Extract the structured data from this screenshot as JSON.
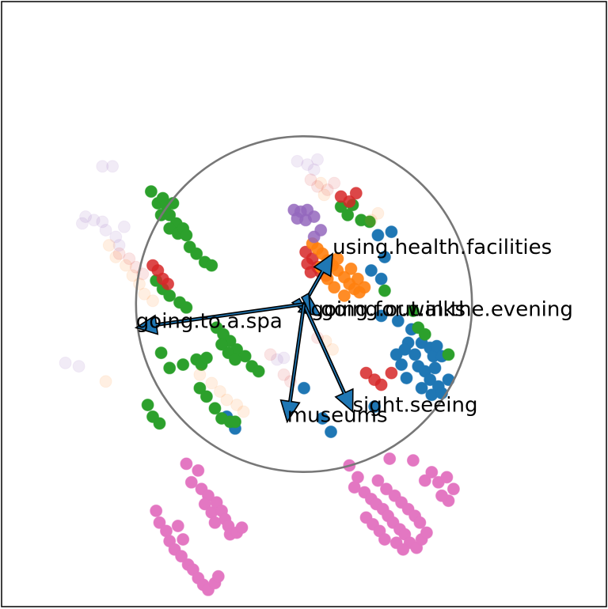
{
  "chart_data": {
    "type": "scatter",
    "title": "",
    "xlabel": "",
    "ylabel": "",
    "xlim": [
      -1.8,
      1.8
    ],
    "ylim": [
      -1.8,
      1.8
    ],
    "grid": false,
    "ticks_visible": false,
    "unit_circle": {
      "radius": 1.0,
      "color": "#777777"
    },
    "arrows": [
      {
        "label": "using.health.facilities",
        "x": 0.17,
        "y": 0.3
      },
      {
        "label": "going.out.in.the.evening",
        "x": 0.1,
        "y": -0.07
      },
      {
        "label": "going.for.walks",
        "x": 0.04,
        "y": -0.07
      },
      {
        "label": "going.to.a.spa",
        "x": -1.0,
        "y": -0.14
      },
      {
        "label": "sight.seeing",
        "x": 0.29,
        "y": -0.64
      },
      {
        "label": "museums",
        "x": -0.1,
        "y": -0.7
      }
    ],
    "series": [
      {
        "color": "#1f77b4",
        "opacity": 1.0,
        "points": [
          [
            0.52,
            0.43
          ],
          [
            0.44,
            0.41
          ],
          [
            0.48,
            0.28
          ],
          [
            0.4,
            0.2
          ],
          [
            0.46,
            0.15
          ],
          [
            0.46,
            -0.07
          ],
          [
            0.56,
            -0.1
          ],
          [
            0.64,
            -0.15
          ],
          [
            0.62,
            -0.23
          ],
          [
            0.7,
            -0.23
          ],
          [
            0.75,
            -0.26
          ],
          [
            0.77,
            -0.31
          ],
          [
            0.79,
            -0.25
          ],
          [
            0.82,
            -0.31
          ],
          [
            0.6,
            -0.27
          ],
          [
            0.66,
            -0.3
          ],
          [
            0.68,
            -0.37
          ],
          [
            0.72,
            -0.4
          ],
          [
            0.75,
            -0.45
          ],
          [
            0.78,
            -0.38
          ],
          [
            0.8,
            -0.49
          ],
          [
            0.7,
            -0.5
          ],
          [
            0.76,
            -0.54
          ],
          [
            0.82,
            -0.53
          ],
          [
            0.86,
            -0.45
          ],
          [
            0.61,
            -0.44
          ],
          [
            0.58,
            -0.36
          ],
          [
            0.55,
            -0.3
          ],
          [
            0.0,
            -0.5
          ],
          [
            -0.46,
            -0.67
          ],
          [
            -0.41,
            -0.74
          ],
          [
            0.11,
            -0.68
          ],
          [
            0.16,
            -0.76
          ],
          [
            0.42,
            -0.61
          ]
        ]
      },
      {
        "color": "#2ca02c",
        "opacity": 1.0,
        "points": [
          [
            -0.91,
            0.67
          ],
          [
            -0.87,
            0.6
          ],
          [
            -0.84,
            0.63
          ],
          [
            -0.82,
            0.59
          ],
          [
            -0.78,
            0.6
          ],
          [
            -0.85,
            0.53
          ],
          [
            -0.8,
            0.53
          ],
          [
            -0.76,
            0.48
          ],
          [
            -0.8,
            0.45
          ],
          [
            -0.75,
            0.42
          ],
          [
            -0.72,
            0.45
          ],
          [
            -0.7,
            0.41
          ],
          [
            -0.68,
            0.34
          ],
          [
            -0.64,
            0.3
          ],
          [
            -0.59,
            0.25
          ],
          [
            -0.55,
            0.23
          ],
          [
            -0.88,
            0.14
          ],
          [
            -0.84,
            0.09
          ],
          [
            -0.8,
            0.05
          ],
          [
            -0.74,
            0.01
          ],
          [
            -0.7,
            -0.02
          ],
          [
            -0.52,
            -0.14
          ],
          [
            -0.48,
            -0.18
          ],
          [
            -0.44,
            -0.22
          ],
          [
            -0.4,
            -0.27
          ],
          [
            -0.35,
            -0.31
          ],
          [
            -0.31,
            -0.37
          ],
          [
            -0.27,
            -0.4
          ],
          [
            -0.49,
            -0.24
          ],
          [
            -0.45,
            -0.29
          ],
          [
            -0.41,
            -0.33
          ],
          [
            -0.85,
            -0.29
          ],
          [
            -0.8,
            -0.38
          ],
          [
            -0.72,
            -0.36
          ],
          [
            -0.64,
            -0.33
          ],
          [
            -0.61,
            -0.36
          ],
          [
            -0.58,
            -0.32
          ],
          [
            -0.62,
            -0.5
          ],
          [
            -0.58,
            -0.55
          ],
          [
            -0.53,
            -0.62
          ],
          [
            -0.49,
            -0.68
          ],
          [
            -0.44,
            -0.7
          ],
          [
            -0.41,
            -0.7
          ],
          [
            -0.93,
            -0.6
          ],
          [
            -0.9,
            -0.67
          ],
          [
            -0.86,
            -0.71
          ],
          [
            0.22,
            0.58
          ],
          [
            0.26,
            0.53
          ],
          [
            0.29,
            0.59
          ],
          [
            0.34,
            0.5
          ],
          [
            0.39,
            0.49
          ],
          [
            0.65,
            -0.04
          ],
          [
            0.68,
            -0.14
          ],
          [
            0.72,
            -0.18
          ],
          [
            0.48,
            0.08
          ],
          [
            0.86,
            -0.3
          ]
        ]
      },
      {
        "color": "#d62728",
        "opacity": 0.85,
        "points": [
          [
            0.01,
            0.31
          ],
          [
            0.05,
            0.27
          ],
          [
            0.08,
            0.22
          ],
          [
            0.1,
            0.19
          ],
          [
            0.13,
            0.17
          ],
          [
            0.04,
            0.19
          ],
          [
            0.02,
            0.24
          ],
          [
            0.15,
            0.25
          ],
          [
            0.22,
            0.64
          ],
          [
            0.27,
            0.61
          ],
          [
            0.31,
            0.66
          ],
          [
            0.37,
            -0.41
          ],
          [
            0.42,
            -0.45
          ],
          [
            0.46,
            -0.48
          ],
          [
            0.52,
            -0.41
          ],
          [
            -0.9,
            0.23
          ],
          [
            -0.87,
            0.2
          ],
          [
            -0.84,
            0.15
          ],
          [
            -0.81,
            0.12
          ]
        ]
      },
      {
        "color": "#ff7f0e",
        "opacity": 0.9,
        "points": [
          [
            0.05,
            0.36
          ],
          [
            0.08,
            0.33
          ],
          [
            0.11,
            0.3
          ],
          [
            0.14,
            0.26
          ],
          [
            0.17,
            0.23
          ],
          [
            0.2,
            0.2
          ],
          [
            0.24,
            0.16
          ],
          [
            0.27,
            0.12
          ],
          [
            0.3,
            0.09
          ],
          [
            0.33,
            0.07
          ],
          [
            0.14,
            0.15
          ],
          [
            0.2,
            0.27
          ],
          [
            0.24,
            0.05
          ],
          [
            0.18,
            0.1
          ],
          [
            0.1,
            0.22
          ],
          [
            0.28,
            0.21
          ],
          [
            0.32,
            0.15
          ],
          [
            0.36,
            0.1
          ]
        ]
      },
      {
        "color": "#9467bd",
        "opacity": 0.85,
        "points": [
          [
            -0.06,
            0.56
          ],
          [
            -0.02,
            0.55
          ],
          [
            0.02,
            0.56
          ],
          [
            -0.04,
            0.51
          ],
          [
            0.01,
            0.5
          ],
          [
            0.06,
            0.52
          ],
          [
            0.1,
            0.44
          ],
          [
            0.06,
            0.4
          ]
        ]
      },
      {
        "color": "#e377c2",
        "opacity": 1.0,
        "points": [
          [
            -0.7,
            -0.95
          ],
          [
            -0.63,
            -0.99
          ],
          [
            -0.67,
            -1.06
          ],
          [
            -0.61,
            -1.1
          ],
          [
            -0.57,
            -1.14
          ],
          [
            -0.59,
            -1.19
          ],
          [
            -0.55,
            -1.24
          ],
          [
            -0.52,
            -1.18
          ],
          [
            -0.49,
            -1.23
          ],
          [
            -0.47,
            -1.28
          ],
          [
            -0.45,
            -1.32
          ],
          [
            -0.44,
            -1.37
          ],
          [
            -0.4,
            -1.36
          ],
          [
            -0.37,
            -1.33
          ],
          [
            -0.53,
            -1.3
          ],
          [
            -0.88,
            -1.23
          ],
          [
            -0.86,
            -1.3
          ],
          [
            -0.82,
            -1.35
          ],
          [
            -0.8,
            -1.41
          ],
          [
            -0.77,
            -1.46
          ],
          [
            -0.73,
            -1.5
          ],
          [
            -0.69,
            -1.55
          ],
          [
            -0.66,
            -1.58
          ],
          [
            -0.63,
            -1.63
          ],
          [
            -0.6,
            -1.67
          ],
          [
            -0.57,
            -1.7
          ],
          [
            -0.53,
            -1.66
          ],
          [
            -0.51,
            -1.62
          ],
          [
            -0.72,
            -1.4
          ],
          [
            -0.75,
            -1.32
          ],
          [
            0.27,
            -0.96
          ],
          [
            0.32,
            -1.03
          ],
          [
            0.3,
            -1.09
          ],
          [
            0.36,
            -1.12
          ],
          [
            0.4,
            -1.16
          ],
          [
            0.43,
            -1.19
          ],
          [
            0.47,
            -1.22
          ],
          [
            0.5,
            -1.26
          ],
          [
            0.53,
            -1.3
          ],
          [
            0.57,
            -1.34
          ],
          [
            0.6,
            -1.37
          ],
          [
            0.63,
            -1.42
          ],
          [
            0.67,
            -1.45
          ],
          [
            0.7,
            -1.4
          ],
          [
            0.73,
            -1.36
          ],
          [
            0.44,
            -1.05
          ],
          [
            0.49,
            -1.1
          ],
          [
            0.54,
            -1.14
          ],
          [
            0.58,
            -1.18
          ],
          [
            0.62,
            -1.22
          ],
          [
            0.66,
            -1.26
          ],
          [
            0.69,
            -1.3
          ],
          [
            0.72,
            -1.05
          ],
          [
            0.76,
            -1.0
          ],
          [
            0.8,
            -1.06
          ],
          [
            0.85,
            -1.03
          ],
          [
            0.89,
            -1.1
          ],
          [
            0.86,
            -1.17
          ],
          [
            0.82,
            -1.14
          ],
          [
            0.51,
            -0.92
          ],
          [
            0.37,
            -1.27
          ],
          [
            0.41,
            -1.31
          ],
          [
            0.45,
            -1.35
          ],
          [
            0.48,
            -1.4
          ],
          [
            0.55,
            -1.42
          ],
          [
            0.59,
            -1.46
          ],
          [
            0.65,
            -0.93
          ]
        ]
      },
      {
        "color": "#9467bd",
        "opacity": 0.13,
        "points": [
          [
            -1.3,
            0.52
          ],
          [
            -1.25,
            0.5
          ],
          [
            -1.2,
            0.49
          ],
          [
            -1.18,
            0.44
          ],
          [
            -1.12,
            0.4
          ],
          [
            -1.1,
            0.35
          ],
          [
            -1.32,
            0.48
          ],
          [
            -1.07,
            0.46
          ],
          [
            -1.42,
            -0.35
          ],
          [
            -1.34,
            -0.37
          ],
          [
            -1.2,
            0.82
          ],
          [
            -1.14,
            0.82
          ],
          [
            -0.16,
            -0.33
          ],
          [
            -0.12,
            -0.32
          ],
          [
            -0.04,
            0.85
          ],
          [
            0.02,
            0.83
          ],
          [
            0.08,
            0.86
          ],
          [
            0.06,
            0.8
          ]
        ]
      },
      {
        "color": "#ff7f0e",
        "opacity": 0.12,
        "points": [
          [
            -1.16,
            0.35
          ],
          [
            -1.12,
            0.28
          ],
          [
            -1.06,
            0.23
          ],
          [
            -1.02,
            0.17
          ],
          [
            -0.98,
            0.12
          ],
          [
            -0.95,
            0.06
          ],
          [
            -0.9,
            0.02
          ],
          [
            -1.18,
            -0.46
          ],
          [
            -0.62,
            -0.42
          ],
          [
            -0.55,
            -0.47
          ],
          [
            -0.5,
            -0.52
          ],
          [
            -0.46,
            -0.57
          ],
          [
            -0.4,
            -0.6
          ],
          [
            -0.36,
            -0.64
          ],
          [
            0.13,
            -0.22
          ],
          [
            0.17,
            -0.27
          ],
          [
            0.4,
            0.5
          ],
          [
            0.44,
            0.54
          ],
          [
            0.1,
            0.72
          ],
          [
            0.12,
            0.65
          ]
        ]
      },
      {
        "color": "#d62728",
        "opacity": 0.12,
        "points": [
          [
            -1.1,
            0.3
          ],
          [
            -1.04,
            0.27
          ],
          [
            -1.0,
            0.22
          ],
          [
            -0.96,
            0.18
          ],
          [
            0.04,
            0.74
          ],
          [
            0.08,
            0.7
          ],
          [
            0.14,
            0.68
          ],
          [
            0.18,
            0.72
          ],
          [
            -0.12,
            -0.42
          ],
          [
            -0.08,
            -0.46
          ],
          [
            0.08,
            -0.2
          ],
          [
            -0.2,
            -0.3
          ]
        ]
      }
    ]
  }
}
